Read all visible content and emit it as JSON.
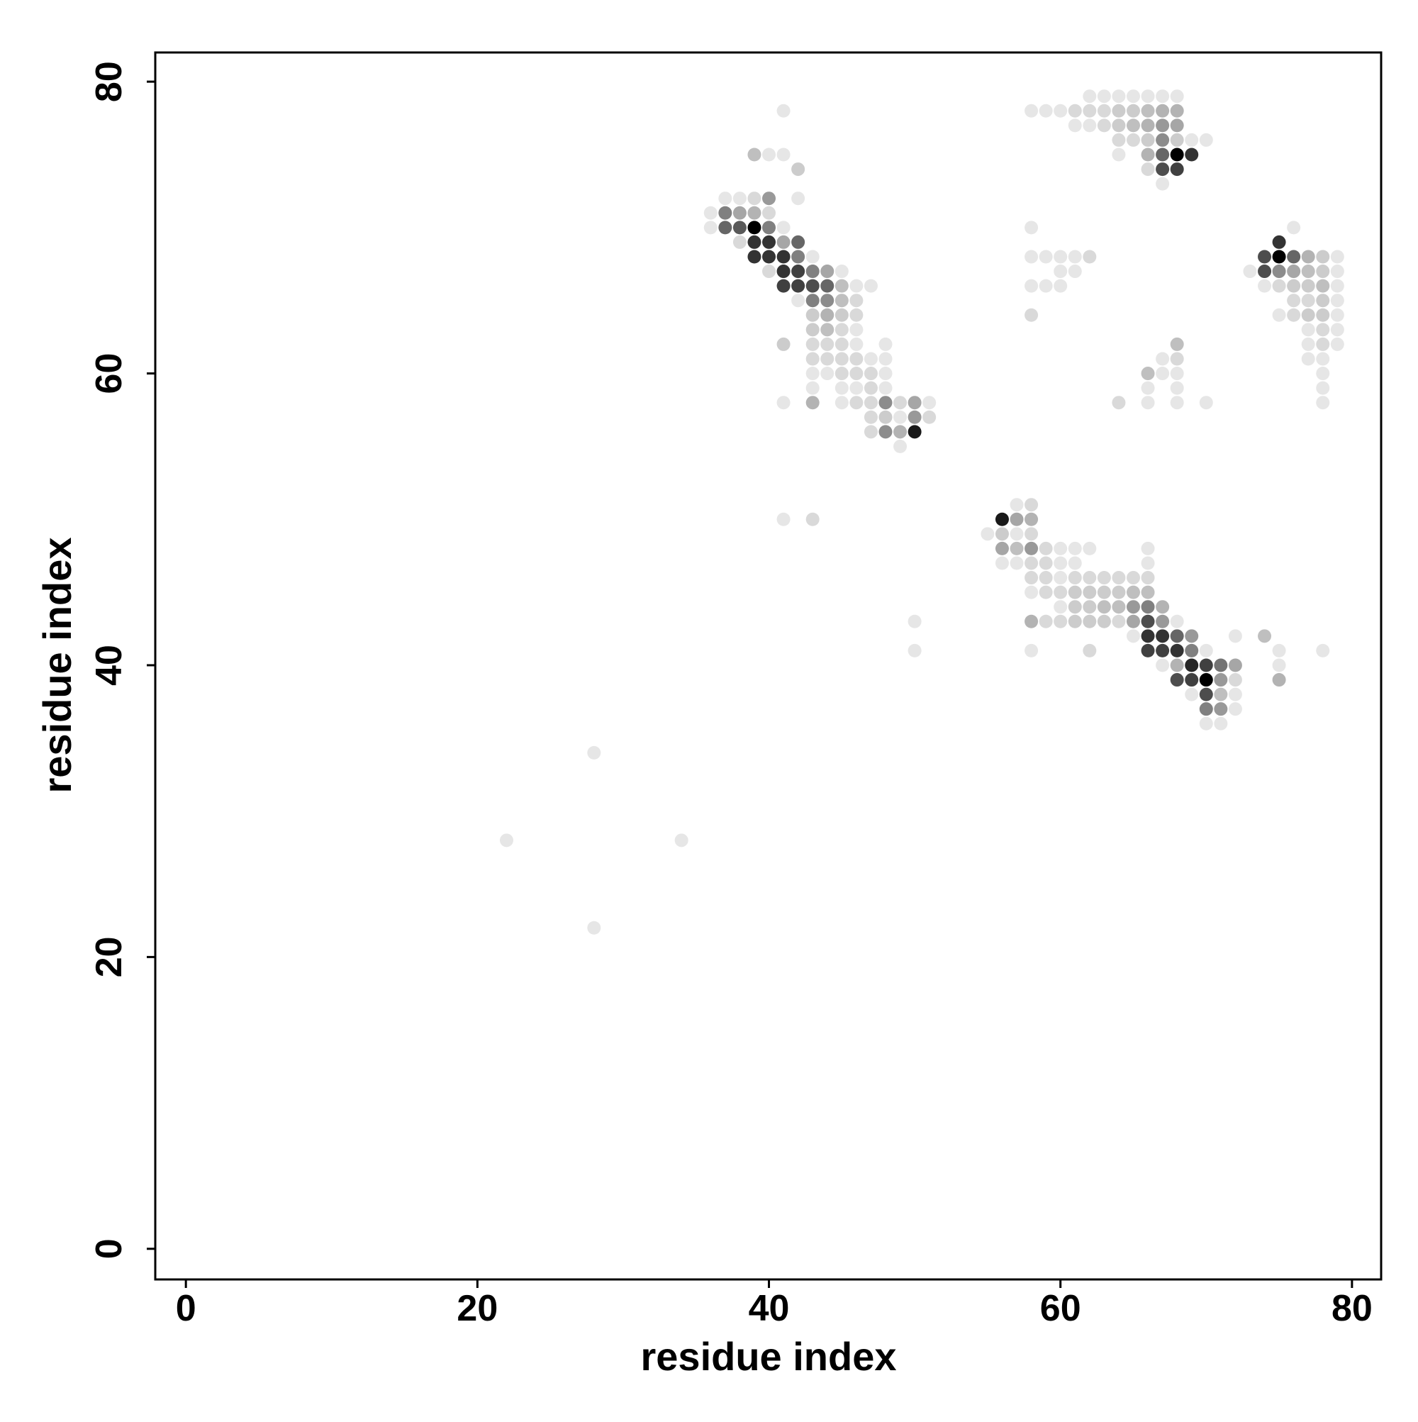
{
  "chart_data": {
    "type": "scatter",
    "xlabel": "residue index",
    "ylabel": "residue index",
    "xlim": [
      -2.1,
      82
    ],
    "ylim": [
      -2.1,
      82
    ],
    "xticks": [
      0,
      20,
      40,
      60,
      80
    ],
    "yticks": [
      0,
      20,
      40,
      60,
      80
    ],
    "color": "#000000",
    "x": [
      41,
      39,
      40,
      41,
      42,
      37,
      38,
      39,
      40,
      42,
      36,
      37,
      38,
      39,
      40,
      36,
      37,
      38,
      39,
      40,
      41,
      38,
      39,
      40,
      41,
      42,
      39,
      40,
      41,
      42,
      43,
      40,
      41,
      42,
      43,
      44,
      45,
      41,
      42,
      43,
      44,
      45,
      46,
      47,
      42,
      43,
      44,
      45,
      46,
      43,
      44,
      45,
      46,
      43,
      44,
      45,
      46,
      41,
      43,
      44,
      45,
      46,
      48,
      43,
      44,
      45,
      46,
      47,
      48,
      43,
      44,
      45,
      46,
      47,
      48,
      43,
      45,
      46,
      47,
      48,
      41,
      43,
      45,
      46,
      47,
      48,
      49,
      50,
      51,
      47,
      48,
      49,
      50,
      51,
      47,
      48,
      49,
      50,
      49,
      41,
      43,
      62,
      63,
      64,
      65,
      66,
      67,
      68,
      58,
      59,
      60,
      61,
      62,
      63,
      64,
      65,
      66,
      67,
      68,
      61,
      62,
      63,
      64,
      65,
      66,
      67,
      68,
      64,
      65,
      66,
      67,
      68,
      69,
      70,
      64,
      66,
      67,
      68,
      69,
      66,
      67,
      68,
      67,
      76,
      75,
      74,
      75,
      76,
      77,
      78,
      79,
      73,
      74,
      75,
      76,
      77,
      78,
      79,
      74,
      75,
      76,
      77,
      78,
      79,
      76,
      77,
      78,
      79,
      75,
      76,
      77,
      78,
      79,
      77,
      78,
      79,
      77,
      78,
      79,
      77,
      78,
      78,
      78,
      78,
      58,
      58,
      59,
      60,
      61,
      62,
      60,
      61,
      58,
      59,
      60,
      58,
      68,
      67,
      68,
      66,
      67,
      68,
      66,
      68,
      64,
      66,
      68,
      70,
      57,
      58,
      56,
      57,
      58,
      55,
      56,
      57,
      58,
      56,
      57,
      58,
      59,
      60,
      61,
      62,
      66,
      56,
      57,
      58,
      59,
      60,
      61,
      66,
      58,
      59,
      60,
      61,
      62,
      63,
      64,
      65,
      66,
      58,
      59,
      60,
      61,
      62,
      63,
      64,
      65,
      66,
      60,
      61,
      62,
      63,
      64,
      65,
      66,
      67,
      58,
      59,
      60,
      61,
      62,
      63,
      64,
      65,
      66,
      67,
      68,
      65,
      66,
      67,
      68,
      69,
      72,
      74,
      58,
      62,
      66,
      67,
      68,
      69,
      70,
      75,
      78,
      67,
      68,
      69,
      70,
      71,
      72,
      75,
      68,
      69,
      70,
      71,
      72,
      75,
      69,
      70,
      71,
      72,
      70,
      71,
      72,
      70,
      71,
      50,
      50,
      28,
      22,
      34,
      28
    ],
    "y": [
      78,
      75,
      75,
      75,
      74,
      72,
      72,
      72,
      72,
      72,
      71,
      71,
      71,
      71,
      71,
      70,
      70,
      70,
      70,
      70,
      70,
      69,
      69,
      69,
      69,
      69,
      68,
      68,
      68,
      68,
      68,
      67,
      67,
      67,
      67,
      67,
      67,
      66,
      66,
      66,
      66,
      66,
      66,
      66,
      65,
      65,
      65,
      65,
      65,
      64,
      64,
      64,
      64,
      63,
      63,
      63,
      63,
      62,
      62,
      62,
      62,
      62,
      62,
      61,
      61,
      61,
      61,
      61,
      61,
      60,
      60,
      60,
      60,
      60,
      60,
      59,
      59,
      59,
      59,
      59,
      58,
      58,
      58,
      58,
      58,
      58,
      58,
      58,
      58,
      57,
      57,
      57,
      57,
      57,
      56,
      56,
      56,
      56,
      55,
      50,
      50,
      79,
      79,
      79,
      79,
      79,
      79,
      79,
      78,
      78,
      78,
      78,
      78,
      78,
      78,
      78,
      78,
      78,
      78,
      77,
      77,
      77,
      77,
      77,
      77,
      77,
      77,
      76,
      76,
      76,
      76,
      76,
      76,
      76,
      75,
      75,
      75,
      75,
      75,
      74,
      74,
      74,
      73,
      70,
      69,
      68,
      68,
      68,
      68,
      68,
      68,
      67,
      67,
      67,
      67,
      67,
      67,
      67,
      66,
      66,
      66,
      66,
      66,
      66,
      65,
      65,
      65,
      65,
      64,
      64,
      64,
      64,
      64,
      63,
      63,
      63,
      62,
      62,
      62,
      61,
      61,
      60,
      59,
      58,
      70,
      68,
      68,
      68,
      68,
      68,
      67,
      67,
      66,
      66,
      66,
      64,
      62,
      61,
      61,
      60,
      60,
      60,
      59,
      59,
      58,
      58,
      58,
      58,
      51,
      51,
      50,
      50,
      50,
      49,
      49,
      49,
      49,
      48,
      48,
      48,
      48,
      48,
      48,
      48,
      48,
      47,
      47,
      47,
      47,
      47,
      47,
      47,
      46,
      46,
      46,
      46,
      46,
      46,
      46,
      46,
      46,
      45,
      45,
      45,
      45,
      45,
      45,
      45,
      45,
      45,
      44,
      44,
      44,
      44,
      44,
      44,
      44,
      44,
      43,
      43,
      43,
      43,
      43,
      43,
      43,
      43,
      43,
      43,
      43,
      42,
      42,
      42,
      42,
      42,
      42,
      42,
      41,
      41,
      41,
      41,
      41,
      41,
      41,
      41,
      41,
      40,
      40,
      40,
      40,
      40,
      40,
      40,
      39,
      39,
      39,
      39,
      39,
      39,
      38,
      38,
      38,
      38,
      37,
      37,
      37,
      36,
      36,
      43,
      41,
      34,
      28,
      28,
      22
    ],
    "shade": [
      0.1,
      0.25,
      0.1,
      0.1,
      0.2,
      0.1,
      0.1,
      0.15,
      0.4,
      0.1,
      0.1,
      0.5,
      0.35,
      0.3,
      0.15,
      0.1,
      0.6,
      0.65,
      1,
      0.5,
      0.1,
      0.15,
      0.8,
      0.8,
      0.35,
      0.6,
      0.8,
      0.8,
      0.8,
      0.5,
      0.1,
      0.15,
      0.8,
      0.75,
      0.5,
      0.35,
      0.1,
      0.75,
      0.75,
      0.7,
      0.6,
      0.25,
      0.1,
      0.1,
      0.1,
      0.5,
      0.45,
      0.25,
      0.15,
      0.2,
      0.3,
      0.2,
      0.15,
      0.2,
      0.25,
      0.15,
      0.1,
      0.2,
      0.15,
      0.15,
      0.15,
      0.1,
      0.1,
      0.15,
      0.15,
      0.15,
      0.15,
      0.1,
      0.1,
      0.1,
      0.1,
      0.15,
      0.15,
      0.15,
      0.1,
      0.1,
      0.1,
      0.1,
      0.15,
      0.1,
      0.1,
      0.3,
      0.1,
      0.15,
      0.15,
      0.45,
      0.15,
      0.35,
      0.1,
      0.15,
      0.2,
      0.1,
      0.4,
      0.15,
      0.15,
      0.45,
      0.3,
      0.9,
      0.1,
      0.1,
      0.15,
      0.1,
      0.1,
      0.1,
      0.1,
      0.1,
      0.1,
      0.1,
      0.1,
      0.1,
      0.1,
      0.15,
      0.15,
      0.15,
      0.2,
      0.2,
      0.25,
      0.3,
      0.3,
      0.1,
      0.1,
      0.15,
      0.2,
      0.25,
      0.3,
      0.4,
      0.35,
      0.15,
      0.15,
      0.2,
      0.45,
      0.2,
      0.1,
      0.1,
      0.1,
      0.3,
      0.6,
      1,
      0.8,
      0.15,
      0.7,
      0.75,
      0.1,
      0.1,
      0.8,
      0.7,
      1,
      0.6,
      0.3,
      0.2,
      0.1,
      0.1,
      0.7,
      0.45,
      0.35,
      0.25,
      0.2,
      0.1,
      0.1,
      0.15,
      0.2,
      0.2,
      0.25,
      0.1,
      0.15,
      0.15,
      0.2,
      0.1,
      0.1,
      0.15,
      0.2,
      0.2,
      0.1,
      0.1,
      0.15,
      0.1,
      0.1,
      0.15,
      0.1,
      0.1,
      0.1,
      0.1,
      0.1,
      0.1,
      0.1,
      0.1,
      0.1,
      0.1,
      0.1,
      0.15,
      0.1,
      0.1,
      0.1,
      0.1,
      0.1,
      0.15,
      0.25,
      0.1,
      0.15,
      0.25,
      0.1,
      0.1,
      0.1,
      0.1,
      0.15,
      0.1,
      0.1,
      0.1,
      0.1,
      0.15,
      0.9,
      0.35,
      0.3,
      0.1,
      0.2,
      0.1,
      0.15,
      0.35,
      0.25,
      0.4,
      0.15,
      0.1,
      0.1,
      0.1,
      0.1,
      0.1,
      0.1,
      0.15,
      0.15,
      0.1,
      0.1,
      0.1,
      0.15,
      0.15,
      0.1,
      0.15,
      0.15,
      0.15,
      0.15,
      0.15,
      0.15,
      0.1,
      0.15,
      0.15,
      0.2,
      0.2,
      0.2,
      0.2,
      0.25,
      0.25,
      0.1,
      0.2,
      0.2,
      0.25,
      0.25,
      0.4,
      0.5,
      0.3,
      0.3,
      0.15,
      0.15,
      0.2,
      0.2,
      0.2,
      0.15,
      0.35,
      0.7,
      0.4,
      0.1,
      0.1,
      0.8,
      0.8,
      0.6,
      0.4,
      0.1,
      0.25,
      0.1,
      0.15,
      0.75,
      0.75,
      0.8,
      0.5,
      0.1,
      0.1,
      0.1,
      0.1,
      0.3,
      0.85,
      0.75,
      0.55,
      0.35,
      0.1,
      0.7,
      0.75,
      1,
      0.4,
      0.15,
      0.3,
      0.1,
      0.7,
      0.25,
      0.1,
      0.5,
      0.4,
      0.1,
      0.1,
      0.1,
      0.1,
      0.1,
      0.1,
      0.1,
      0.1,
      0.1
    ]
  }
}
